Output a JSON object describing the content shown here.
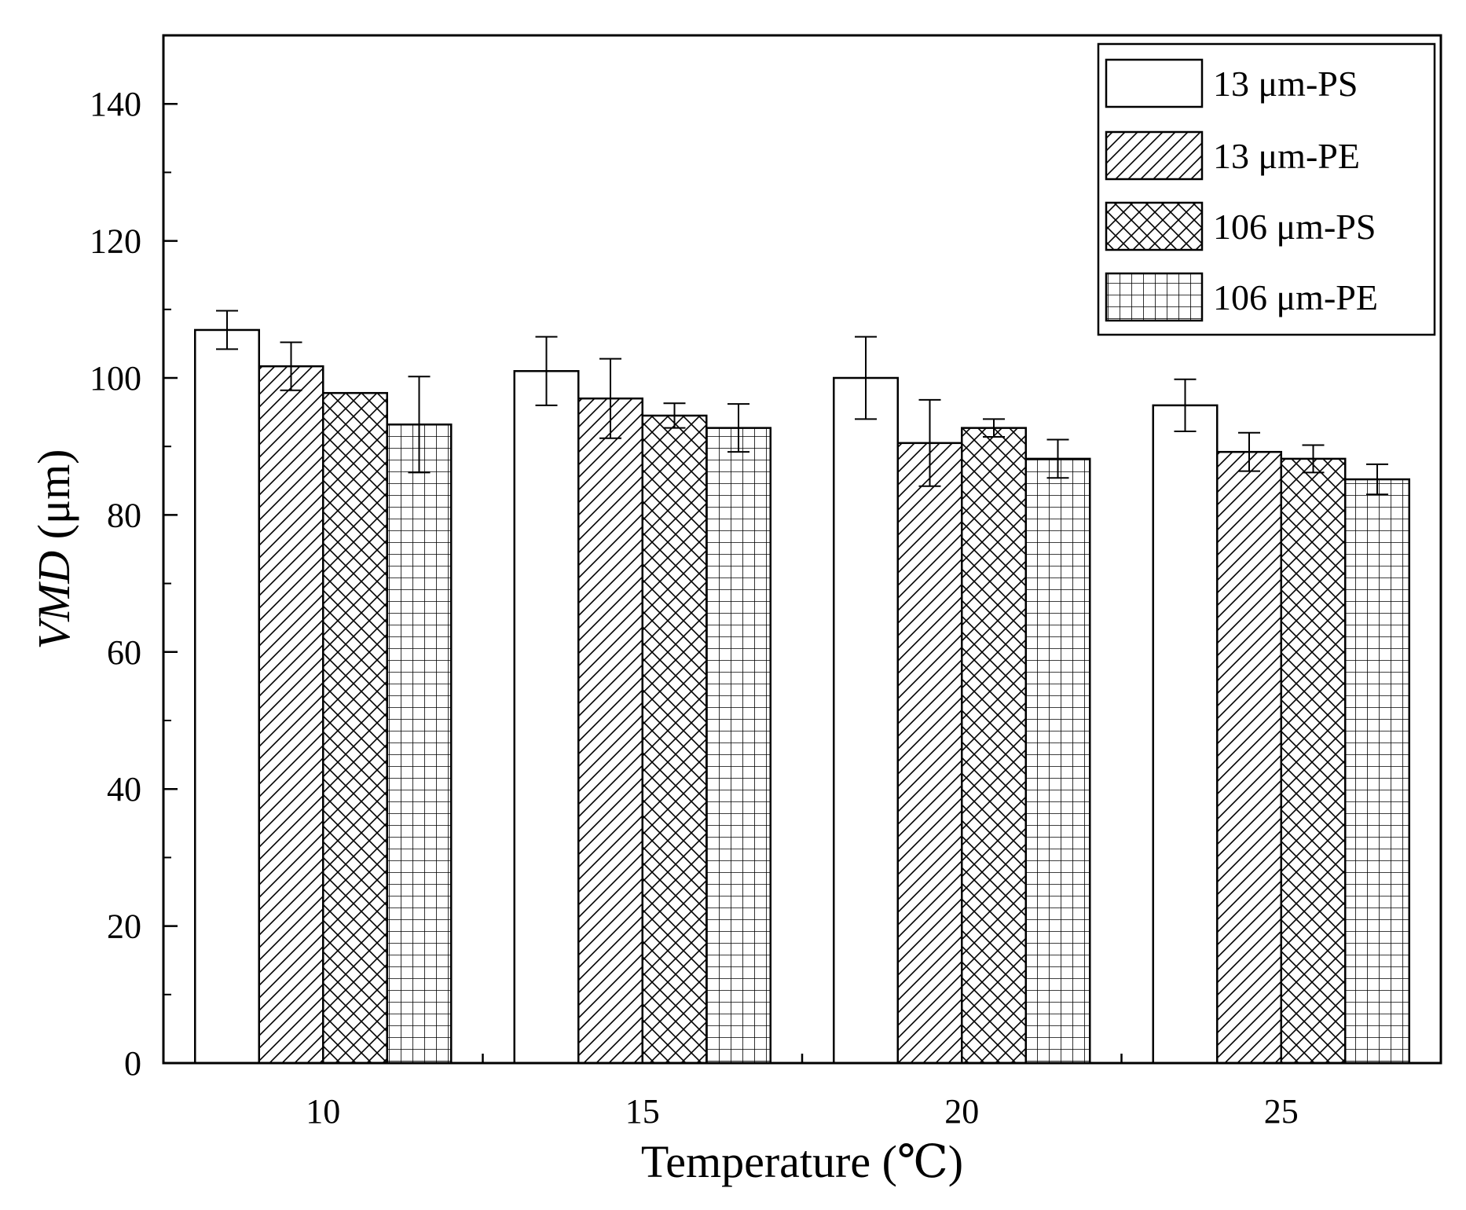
{
  "chart_data": {
    "type": "bar",
    "xlabel": "Temperature (℃)",
    "ylabel_italic": "VMD",
    "ylabel_unit": " (μm)",
    "categories": [
      "10",
      "15",
      "20",
      "25"
    ],
    "ylim": [
      0,
      150
    ],
    "yticks": [
      "0",
      "20",
      "40",
      "60",
      "80",
      "100",
      "120",
      "140"
    ],
    "legend_position": "top-right",
    "series": [
      {
        "name": "13 μm-PS",
        "pattern": "blank",
        "values": [
          107,
          101,
          100,
          96
        ],
        "errors": [
          2.8,
          5.0,
          6.0,
          3.8
        ]
      },
      {
        "name": "13 μm-PE",
        "pattern": "diagonal",
        "values": [
          101.7,
          97,
          90.5,
          89.2
        ],
        "errors": [
          3.5,
          5.8,
          6.3,
          2.8
        ]
      },
      {
        "name": "106 μm-PS",
        "pattern": "crosshatch",
        "values": [
          97.8,
          94.5,
          92.7,
          88.2
        ],
        "errors": [
          0,
          1.8,
          1.3,
          2.0
        ]
      },
      {
        "name": "106 μm-PE",
        "pattern": "grid",
        "values": [
          93.2,
          92.7,
          88.2,
          85.2
        ],
        "errors": [
          7.0,
          3.5,
          2.8,
          2.2
        ]
      }
    ]
  }
}
